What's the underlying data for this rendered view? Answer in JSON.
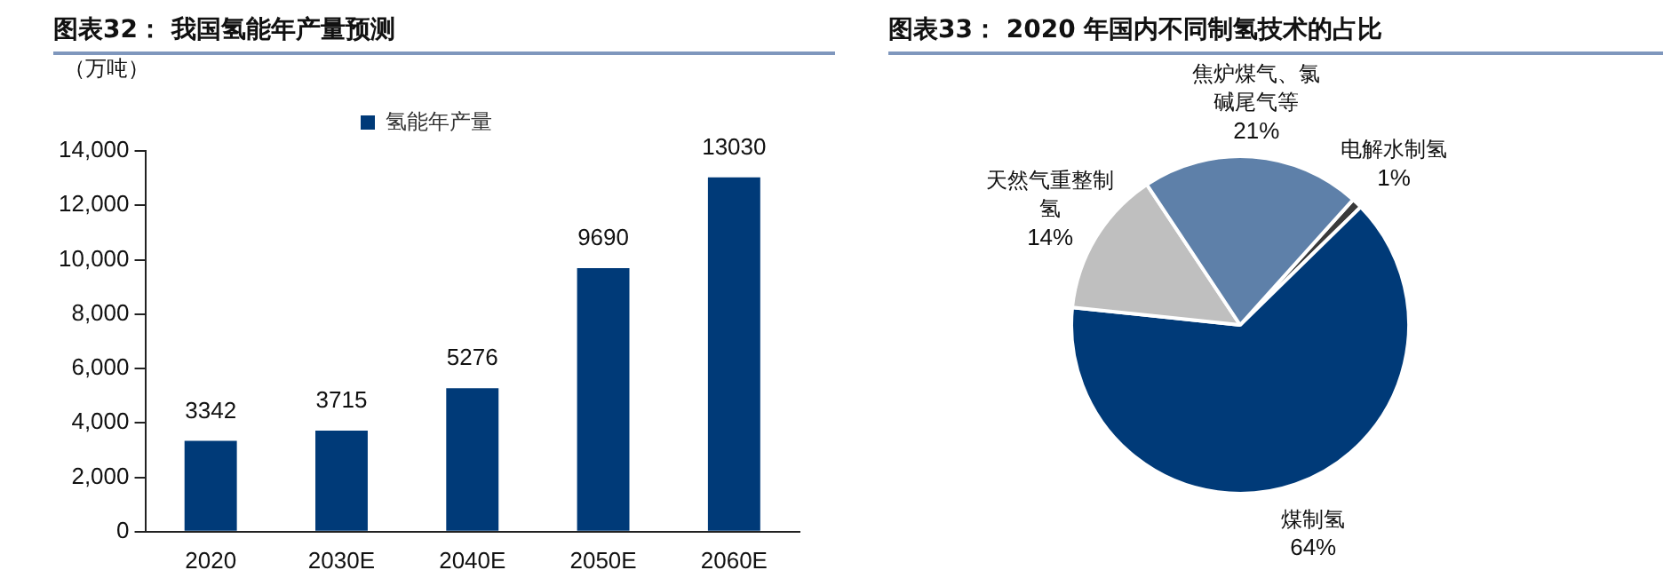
{
  "chart_data": [
    {
      "type": "bar",
      "title": "图表32：  我国氢能年产量预测",
      "ylabel": "（万吨）",
      "categories": [
        "2020",
        "2030E",
        "2040E",
        "2050E",
        "2060E"
      ],
      "series": [
        {
          "name": "氢能年产量",
          "color": "#003a78",
          "values": [
            3342,
            3715,
            5276,
            9690,
            13030
          ]
        }
      ],
      "ylim": [
        0,
        14000
      ],
      "yticks": [
        0,
        {
          "value": 2000,
          "label": "2,000"
        },
        {
          "value": 4000,
          "label": "4,000"
        },
        {
          "value": 6000,
          "label": "6,000"
        },
        {
          "value": 8000,
          "label": "8,000"
        },
        {
          "value": 10000,
          "label": "10,000"
        },
        {
          "value": 12000,
          "label": "12,000"
        },
        {
          "value": 14000,
          "label": "14,000"
        }
      ],
      "grid": false,
      "legend": "top",
      "data_labels": true
    },
    {
      "type": "pie",
      "title": "图表33：  2020 年国内不同制氢技术的占比",
      "categories": [
        "电解水制氢",
        "煤制氢",
        "天然气重整制氢",
        "焦炉煤气、氯碱尾气等"
      ],
      "values": [
        1,
        64,
        14,
        21
      ],
      "value_labels": [
        "1%",
        "64%",
        "14%",
        "21%"
      ],
      "colors": [
        "#3a3a3a",
        "#003a78",
        "#bfbfbf",
        "#5e80a9"
      ],
      "legend": false
    }
  ]
}
